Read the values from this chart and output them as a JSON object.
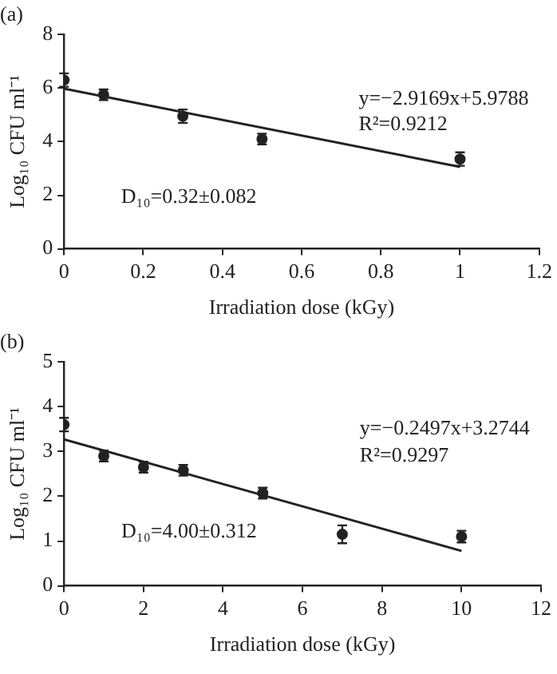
{
  "chart_data": [
    {
      "type": "scatter",
      "title": "(a)",
      "xlabel": "Irradiation dose (kGy)",
      "ylabel": "Log₁₀ CFU ml⁻¹",
      "x": [
        0,
        0.1,
        0.3,
        0.5,
        1
      ],
      "xlim": [
        0,
        1.2
      ],
      "xticks": [
        0,
        0.2,
        0.4,
        0.6,
        0.8,
        1,
        1.2
      ],
      "ylim": [
        0,
        8
      ],
      "yticks": [
        0,
        2,
        4,
        6,
        8
      ],
      "grid": false,
      "legend": false,
      "marker": "circle",
      "series": [
        {
          "color": "#222222",
          "values": [
            6.3,
            5.75,
            4.95,
            4.1,
            3.35
          ],
          "errors": [
            0.25,
            0.2,
            0.25,
            0.2,
            0.25
          ]
        },
        {
          "type": "line",
          "color": "#222222",
          "marker": "none",
          "x": [
            0,
            1
          ],
          "values": [
            5.98,
            3.06
          ]
        }
      ],
      "annotations": [
        "y=−2.9169x+5.9788",
        "R²=0.9212",
        "D₁₀=0.32±0.082"
      ]
    },
    {
      "type": "scatter",
      "title": "(b)",
      "xlabel": "Irradiation dose (kGy)",
      "ylabel": "Log₁₀ CFU ml⁻¹",
      "x": [
        0,
        1,
        2,
        3,
        5,
        7,
        10
      ],
      "xlim": [
        0,
        12
      ],
      "xticks": [
        0,
        2,
        4,
        6,
        8,
        10,
        12
      ],
      "ylim": [
        0,
        5
      ],
      "yticks": [
        0,
        1,
        2,
        3,
        4,
        5
      ],
      "grid": false,
      "legend": false,
      "marker": "circle",
      "series": [
        {
          "color": "#222222",
          "values": [
            3.6,
            2.9,
            2.65,
            2.58,
            2.07,
            1.15,
            1.1
          ],
          "errors": [
            0.15,
            0.12,
            0.12,
            0.12,
            0.12,
            0.2,
            0.13
          ]
        },
        {
          "type": "line",
          "color": "#222222",
          "marker": "none",
          "x": [
            0,
            10
          ],
          "values": [
            3.27,
            0.78
          ]
        }
      ],
      "annotations": [
        "y=−0.2497x+3.2744",
        "R²=0.9297",
        "D₁₀=4.00±0.312"
      ]
    }
  ]
}
